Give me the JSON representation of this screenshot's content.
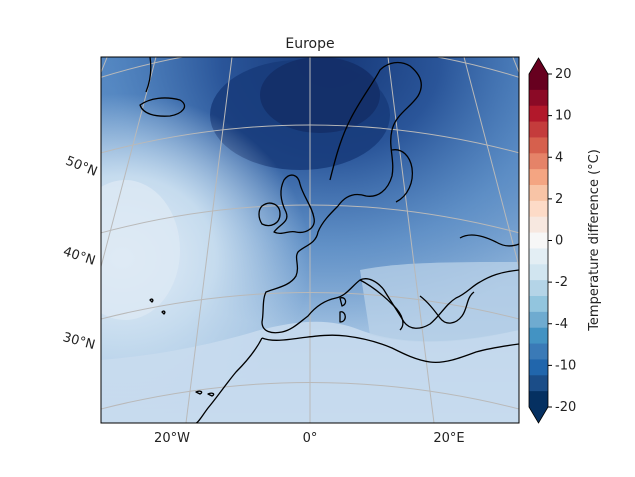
{
  "map": {
    "title": "Europe",
    "lon_labels": [
      "20°W",
      "0°",
      "20°E"
    ],
    "lat_labels": [
      "50°N",
      "40°N",
      "30°N"
    ]
  },
  "colorbar": {
    "label": "Temperature difference (°C)",
    "ticks": [
      "20",
      "10",
      "4",
      "2",
      "0",
      "-2",
      "-4",
      "-10",
      "-20"
    ],
    "palette": [
      "#67001f",
      "#8b0a26",
      "#b2182b",
      "#c43c3c",
      "#d6604d",
      "#e58368",
      "#f4a582",
      "#f8c4a6",
      "#fddbc7",
      "#f7e8e0",
      "#f7f7f7",
      "#e3eef4",
      "#d1e5f0",
      "#b4d4e7",
      "#92c5de",
      "#6fabd0",
      "#4393c3",
      "#3a7ab7",
      "#2166ac",
      "#1b4d88",
      "#053061"
    ]
  },
  "colors": {
    "ocean_light": "#c8dcee",
    "ocean_mid": "#5c8fc7",
    "ocean_dark": "#1c3e80",
    "land_light": "#d2e3f1"
  }
}
